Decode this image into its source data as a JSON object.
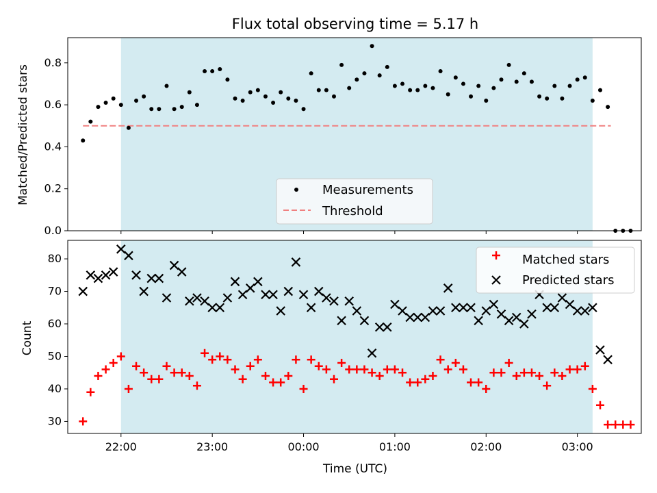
{
  "chart_data": [
    {
      "type": "scatter",
      "title": "Flux total observing time = 5.17 h",
      "ylabel": "Matched/Predicted stars",
      "xlabel": "",
      "xlim": [
        "21:25",
        "03:42"
      ],
      "ylim": [
        0.0,
        0.92
      ],
      "yticks": [
        "0.0",
        "0.2",
        "0.4",
        "0.6",
        "0.8"
      ],
      "shaded_interval": [
        "22:00",
        "03:10"
      ],
      "shade_color": "#d4ebf1",
      "threshold": {
        "name": "Threshold",
        "value": 0.5,
        "x_range": [
          "21:35",
          "03:22"
        ],
        "color": "#f08080"
      },
      "measurements_name": "Measurements",
      "measurements": [
        [
          "21:35",
          0.43
        ],
        [
          "21:40",
          0.52
        ],
        [
          "21:45",
          0.59
        ],
        [
          "21:50",
          0.61
        ],
        [
          "21:55",
          0.63
        ],
        [
          "22:00",
          0.6
        ],
        [
          "22:05",
          0.49
        ],
        [
          "22:10",
          0.62
        ],
        [
          "22:15",
          0.64
        ],
        [
          "22:20",
          0.58
        ],
        [
          "22:25",
          0.58
        ],
        [
          "22:30",
          0.69
        ],
        [
          "22:35",
          0.58
        ],
        [
          "22:40",
          0.59
        ],
        [
          "22:45",
          0.66
        ],
        [
          "22:50",
          0.6
        ],
        [
          "22:55",
          0.76
        ],
        [
          "23:00",
          0.76
        ],
        [
          "23:05",
          0.77
        ],
        [
          "23:10",
          0.72
        ],
        [
          "23:15",
          0.63
        ],
        [
          "23:20",
          0.62
        ],
        [
          "23:25",
          0.66
        ],
        [
          "23:30",
          0.67
        ],
        [
          "23:35",
          0.64
        ],
        [
          "23:40",
          0.61
        ],
        [
          "23:45",
          0.66
        ],
        [
          "23:50",
          0.63
        ],
        [
          "23:55",
          0.62
        ],
        [
          "00:00",
          0.58
        ],
        [
          "00:05",
          0.75
        ],
        [
          "00:10",
          0.67
        ],
        [
          "00:15",
          0.67
        ],
        [
          "00:20",
          0.64
        ],
        [
          "00:25",
          0.79
        ],
        [
          "00:30",
          0.68
        ],
        [
          "00:35",
          0.72
        ],
        [
          "00:40",
          0.75
        ],
        [
          "00:45",
          0.88
        ],
        [
          "00:50",
          0.74
        ],
        [
          "00:55",
          0.78
        ],
        [
          "01:00",
          0.69
        ],
        [
          "01:05",
          0.7
        ],
        [
          "01:10",
          0.67
        ],
        [
          "01:15",
          0.67
        ],
        [
          "01:20",
          0.69
        ],
        [
          "01:25",
          0.68
        ],
        [
          "01:30",
          0.76
        ],
        [
          "01:35",
          0.65
        ],
        [
          "01:40",
          0.73
        ],
        [
          "01:45",
          0.7
        ],
        [
          "01:50",
          0.64
        ],
        [
          "01:55",
          0.69
        ],
        [
          "02:00",
          0.62
        ],
        [
          "02:05",
          0.68
        ],
        [
          "02:10",
          0.72
        ],
        [
          "02:15",
          0.79
        ],
        [
          "02:20",
          0.71
        ],
        [
          "02:25",
          0.75
        ],
        [
          "02:30",
          0.71
        ],
        [
          "02:35",
          0.64
        ],
        [
          "02:40",
          0.63
        ],
        [
          "02:45",
          0.69
        ],
        [
          "02:50",
          0.63
        ],
        [
          "02:55",
          0.69
        ],
        [
          "03:00",
          0.72
        ],
        [
          "03:05",
          0.73
        ],
        [
          "03:10",
          0.62
        ],
        [
          "03:15",
          0.67
        ],
        [
          "03:20",
          0.59
        ],
        [
          "03:25",
          0.0
        ],
        [
          "03:30",
          0.0
        ],
        [
          "03:35",
          0.0
        ]
      ],
      "legend": [
        "Measurements",
        "Threshold"
      ],
      "legend_position": "lower-center"
    },
    {
      "type": "scatter",
      "title": "",
      "xlabel": "Time (UTC)",
      "ylabel": "Count",
      "xlim": [
        "21:25",
        "03:42"
      ],
      "ylim": [
        26.3,
        85.7
      ],
      "xticks": [
        "22:00",
        "23:00",
        "00:00",
        "01:00",
        "02:00",
        "03:00"
      ],
      "yticks": [
        "30",
        "40",
        "50",
        "60",
        "70",
        "80"
      ],
      "shaded_interval": [
        "22:00",
        "03:10"
      ],
      "shade_color": "#d4ebf1",
      "series": [
        {
          "name": "Matched stars",
          "marker": "plus",
          "color": "#ff0000",
          "points": [
            [
              "21:35",
              30
            ],
            [
              "21:40",
              39
            ],
            [
              "21:45",
              44
            ],
            [
              "21:50",
              46
            ],
            [
              "21:55",
              48
            ],
            [
              "22:00",
              50
            ],
            [
              "22:05",
              40
            ],
            [
              "22:10",
              47
            ],
            [
              "22:15",
              45
            ],
            [
              "22:20",
              43
            ],
            [
              "22:25",
              43
            ],
            [
              "22:30",
              47
            ],
            [
              "22:35",
              45
            ],
            [
              "22:40",
              45
            ],
            [
              "22:45",
              44
            ],
            [
              "22:50",
              41
            ],
            [
              "22:55",
              51
            ],
            [
              "23:00",
              49
            ],
            [
              "23:05",
              50
            ],
            [
              "23:10",
              49
            ],
            [
              "23:15",
              46
            ],
            [
              "23:20",
              43
            ],
            [
              "23:25",
              47
            ],
            [
              "23:30",
              49
            ],
            [
              "23:35",
              44
            ],
            [
              "23:40",
              42
            ],
            [
              "23:45",
              42
            ],
            [
              "23:50",
              44
            ],
            [
              "23:55",
              49
            ],
            [
              "00:00",
              40
            ],
            [
              "00:05",
              49
            ],
            [
              "00:10",
              47
            ],
            [
              "00:15",
              46
            ],
            [
              "00:20",
              43
            ],
            [
              "00:25",
              48
            ],
            [
              "00:30",
              46
            ],
            [
              "00:35",
              46
            ],
            [
              "00:40",
              46
            ],
            [
              "00:45",
              45
            ],
            [
              "00:50",
              44
            ],
            [
              "00:55",
              46
            ],
            [
              "01:00",
              46
            ],
            [
              "01:05",
              45
            ],
            [
              "01:10",
              42
            ],
            [
              "01:15",
              42
            ],
            [
              "01:20",
              43
            ],
            [
              "01:25",
              44
            ],
            [
              "01:30",
              49
            ],
            [
              "01:35",
              46
            ],
            [
              "01:40",
              48
            ],
            [
              "01:45",
              46
            ],
            [
              "01:50",
              42
            ],
            [
              "01:55",
              42
            ],
            [
              "02:00",
              40
            ],
            [
              "02:05",
              45
            ],
            [
              "02:10",
              45
            ],
            [
              "02:15",
              48
            ],
            [
              "02:20",
              44
            ],
            [
              "02:25",
              45
            ],
            [
              "02:30",
              45
            ],
            [
              "02:35",
              44
            ],
            [
              "02:40",
              41
            ],
            [
              "02:45",
              45
            ],
            [
              "02:50",
              44
            ],
            [
              "02:55",
              46
            ],
            [
              "03:00",
              46
            ],
            [
              "03:05",
              47
            ],
            [
              "03:10",
              40
            ],
            [
              "03:15",
              35
            ],
            [
              "03:20",
              29
            ],
            [
              "03:25",
              29
            ],
            [
              "03:30",
              29
            ],
            [
              "03:35",
              29
            ]
          ]
        },
        {
          "name": "Predicted stars",
          "marker": "x",
          "color": "#000000",
          "points": [
            [
              "21:35",
              70
            ],
            [
              "21:40",
              75
            ],
            [
              "21:45",
              74
            ],
            [
              "21:50",
              75
            ],
            [
              "21:55",
              76
            ],
            [
              "22:00",
              83
            ],
            [
              "22:05",
              81
            ],
            [
              "22:10",
              75
            ],
            [
              "22:15",
              70
            ],
            [
              "22:20",
              74
            ],
            [
              "22:25",
              74
            ],
            [
              "22:30",
              68
            ],
            [
              "22:35",
              78
            ],
            [
              "22:40",
              76
            ],
            [
              "22:45",
              67
            ],
            [
              "22:50",
              68
            ],
            [
              "22:55",
              67
            ],
            [
              "23:00",
              65
            ],
            [
              "23:05",
              65
            ],
            [
              "23:10",
              68
            ],
            [
              "23:15",
              73
            ],
            [
              "23:20",
              69
            ],
            [
              "23:25",
              71
            ],
            [
              "23:30",
              73
            ],
            [
              "23:35",
              69
            ],
            [
              "23:40",
              69
            ],
            [
              "23:45",
              64
            ],
            [
              "23:50",
              70
            ],
            [
              "23:55",
              79
            ],
            [
              "00:00",
              69
            ],
            [
              "00:05",
              65
            ],
            [
              "00:10",
              70
            ],
            [
              "00:15",
              68
            ],
            [
              "00:20",
              67
            ],
            [
              "00:25",
              61
            ],
            [
              "00:30",
              67
            ],
            [
              "00:35",
              64
            ],
            [
              "00:40",
              61
            ],
            [
              "00:45",
              51
            ],
            [
              "00:50",
              59
            ],
            [
              "00:55",
              59
            ],
            [
              "01:00",
              66
            ],
            [
              "01:05",
              64
            ],
            [
              "01:10",
              62
            ],
            [
              "01:15",
              62
            ],
            [
              "01:20",
              62
            ],
            [
              "01:25",
              64
            ],
            [
              "01:30",
              64
            ],
            [
              "01:35",
              71
            ],
            [
              "01:40",
              65
            ],
            [
              "01:45",
              65
            ],
            [
              "01:50",
              65
            ],
            [
              "01:55",
              61
            ],
            [
              "02:00",
              64
            ],
            [
              "02:05",
              66
            ],
            [
              "02:10",
              63
            ],
            [
              "02:15",
              61
            ],
            [
              "02:20",
              62
            ],
            [
              "02:25",
              60
            ],
            [
              "02:30",
              63
            ],
            [
              "02:35",
              69
            ],
            [
              "02:40",
              65
            ],
            [
              "02:45",
              65
            ],
            [
              "02:50",
              68
            ],
            [
              "02:55",
              66
            ],
            [
              "03:00",
              64
            ],
            [
              "03:05",
              64
            ],
            [
              "03:10",
              65
            ],
            [
              "03:15",
              52
            ],
            [
              "03:20",
              49
            ]
          ]
        }
      ],
      "legend": [
        "Matched stars",
        "Predicted stars"
      ],
      "legend_position": "upper-right"
    }
  ]
}
